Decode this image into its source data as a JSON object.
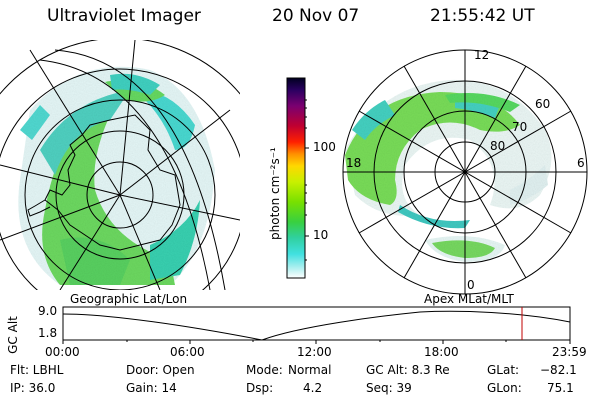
{
  "header": {
    "instrument": "Ultraviolet Imager",
    "date": "20 Nov 07",
    "time": "21:55:42 UT"
  },
  "colorbar": {
    "unit_label": "photon cm⁻²s⁻¹",
    "tick_labels": [
      "100",
      "10"
    ],
    "colors": [
      "#000020",
      "#2a0060",
      "#7a0070",
      "#c00030",
      "#ff2000",
      "#ff9000",
      "#ffd800",
      "#c8f000",
      "#78e000",
      "#38d040",
      "#30d0a0",
      "#40e0e0",
      "#b0f0f0",
      "#ffffff"
    ]
  },
  "maps": {
    "left_title": "Geographic Lat/Lon",
    "right_title": "Apex MLat/MLT",
    "right_labels": {
      "mlt_12": "12",
      "mlt_18": "18",
      "mlt_6": "6",
      "mlt_0": "0",
      "lat_60": "60",
      "lat_70": "70",
      "lat_80": "80"
    }
  },
  "timeline": {
    "ylabel": "GC Alt",
    "ytick_top": "9.0",
    "ytick_bottom": "1.8",
    "xticks": [
      "00:00",
      "06:00",
      "12:00",
      "18:00",
      "23:59"
    ],
    "marker_color": "#c00000"
  },
  "info": {
    "flt": "Flt: LBHL",
    "ip": "IP: 36.0",
    "door": "Door: Open",
    "gain": "Gain: 14",
    "mode_label": "Mode:",
    "mode_value": "Normal",
    "dsp_label": "Dsp:",
    "dsp_value": "4.2",
    "gcalt": "GC Alt: 8.3 Re",
    "seq": "Seq: 39",
    "glat_label": "GLat:",
    "glat_value": "−82.1",
    "glon_label": "GLon:",
    "glon_value": "75.1"
  }
}
